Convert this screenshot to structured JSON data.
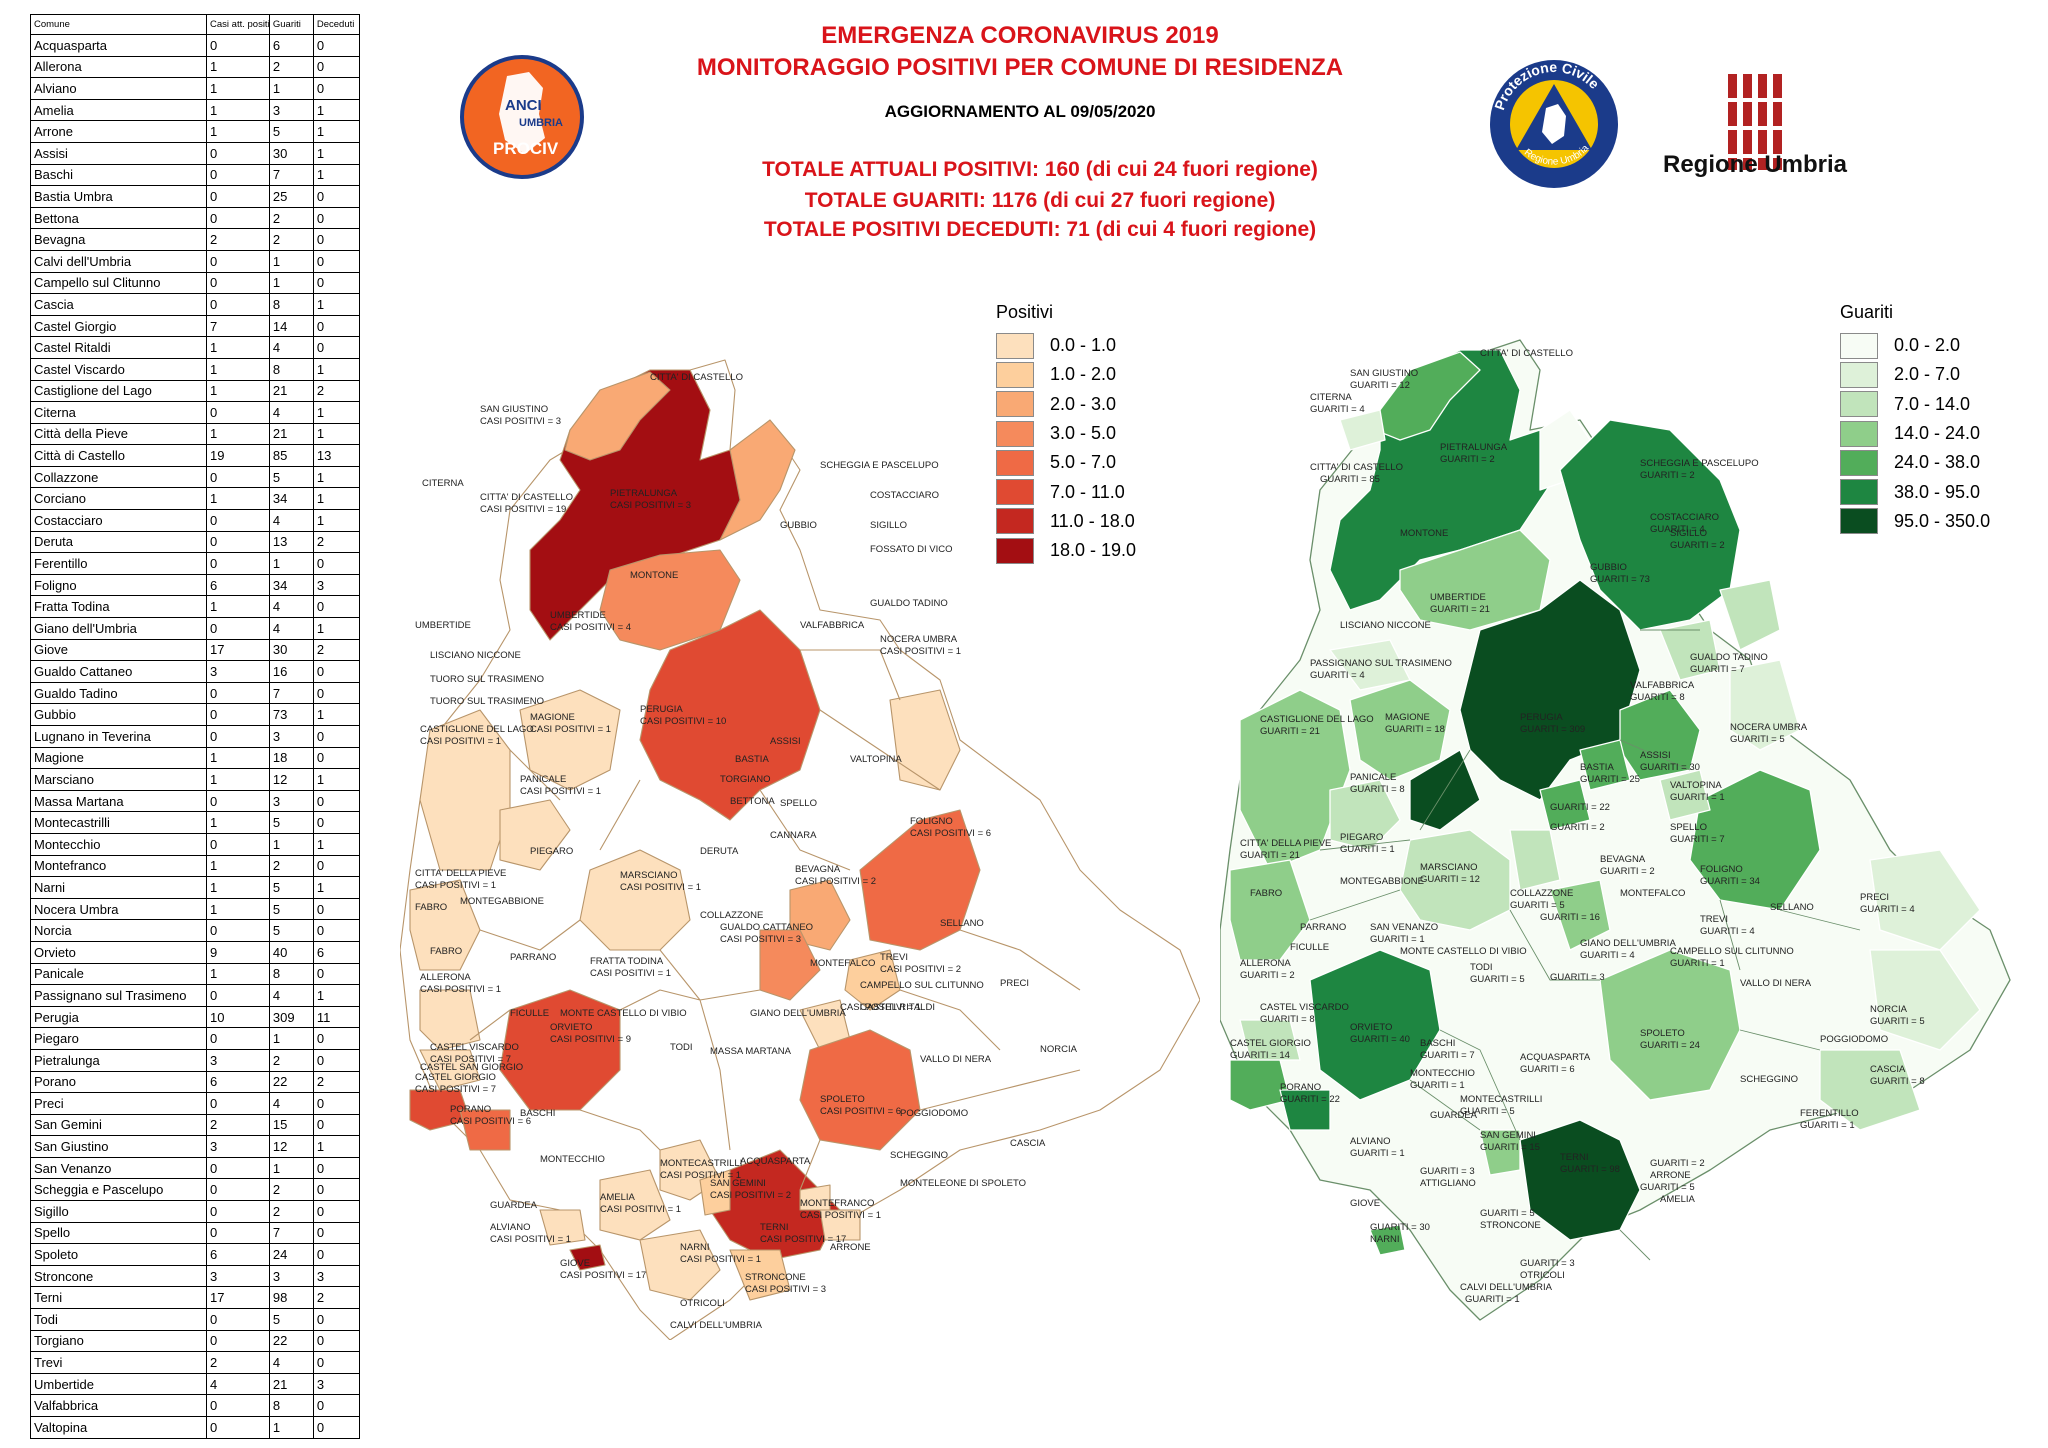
{
  "header": {
    "title_line1": "EMERGENZA CORONAVIRUS 2019",
    "title_line2": "MONITORAGGIO POSITIVI PER COMUNE DI RESIDENZA",
    "update": "AGGIORNAMENTO AL 09/05/2020",
    "totals": [
      "TOTALE ATTUALI POSITIVI: 160 (di cui 24 fuori regione)",
      "TOTALE GUARITI: 1176 (di cui 27 fuori regione)",
      "TOTALE POSITIVI DECEDUTI: 71 (di cui 4 fuori regione)"
    ]
  },
  "logos": {
    "anci": {
      "line1": "ANCI",
      "line2": "UMBRIA",
      "line3": "PROCIV"
    },
    "protezione_civile": {
      "top": "Protezione Civile",
      "bottom": "Regione Umbria"
    },
    "regione": {
      "label": "Regione Umbria"
    }
  },
  "table": {
    "headers": [
      "Comune",
      "Casi att. positivi",
      "Guariti",
      "Deceduti"
    ],
    "rows": [
      [
        "Acquasparta",
        "0",
        "6",
        "0"
      ],
      [
        "Allerona",
        "1",
        "2",
        "0"
      ],
      [
        "Alviano",
        "1",
        "1",
        "0"
      ],
      [
        "Amelia",
        "1",
        "3",
        "1"
      ],
      [
        "Arrone",
        "1",
        "5",
        "1"
      ],
      [
        "Assisi",
        "0",
        "30",
        "1"
      ],
      [
        "Baschi",
        "0",
        "7",
        "1"
      ],
      [
        "Bastia Umbra",
        "0",
        "25",
        "0"
      ],
      [
        "Bettona",
        "0",
        "2",
        "0"
      ],
      [
        "Bevagna",
        "2",
        "2",
        "0"
      ],
      [
        "Calvi dell'Umbria",
        "0",
        "1",
        "0"
      ],
      [
        "Campello sul Clitunno",
        "0",
        "1",
        "0"
      ],
      [
        "Cascia",
        "0",
        "8",
        "1"
      ],
      [
        "Castel Giorgio",
        "7",
        "14",
        "0"
      ],
      [
        "Castel Ritaldi",
        "1",
        "4",
        "0"
      ],
      [
        "Castel Viscardo",
        "1",
        "8",
        "1"
      ],
      [
        "Castiglione del Lago",
        "1",
        "21",
        "2"
      ],
      [
        "Citerna",
        "0",
        "4",
        "1"
      ],
      [
        "Città  della Pieve",
        "1",
        "21",
        "1"
      ],
      [
        "Città  di Castello",
        "19",
        "85",
        "13"
      ],
      [
        "Collazzone",
        "0",
        "5",
        "1"
      ],
      [
        "Corciano",
        "1",
        "34",
        "1"
      ],
      [
        "Costacciaro",
        "0",
        "4",
        "1"
      ],
      [
        "Deruta",
        "0",
        "13",
        "2"
      ],
      [
        "Ferentillo",
        "0",
        "1",
        "0"
      ],
      [
        "Foligno",
        "6",
        "34",
        "3"
      ],
      [
        "Fratta Todina",
        "1",
        "4",
        "0"
      ],
      [
        "Giano dell'Umbria",
        "0",
        "4",
        "1"
      ],
      [
        "Giove",
        "17",
        "30",
        "2"
      ],
      [
        "Gualdo Cattaneo",
        "3",
        "16",
        "0"
      ],
      [
        "Gualdo Tadino",
        "0",
        "7",
        "0"
      ],
      [
        "Gubbio",
        "0",
        "73",
        "1"
      ],
      [
        "Lugnano in Teverina",
        "0",
        "3",
        "0"
      ],
      [
        "Magione",
        "1",
        "18",
        "0"
      ],
      [
        "Marsciano",
        "1",
        "12",
        "1"
      ],
      [
        "Massa Martana",
        "0",
        "3",
        "0"
      ],
      [
        "Montecastrilli",
        "1",
        "5",
        "0"
      ],
      [
        "Montecchio",
        "0",
        "1",
        "1"
      ],
      [
        "Montefranco",
        "1",
        "2",
        "0"
      ],
      [
        "Narni",
        "1",
        "5",
        "1"
      ],
      [
        "Nocera Umbra",
        "1",
        "5",
        "0"
      ],
      [
        "Norcia",
        "0",
        "5",
        "0"
      ],
      [
        "Orvieto",
        "9",
        "40",
        "6"
      ],
      [
        "Panicale",
        "1",
        "8",
        "0"
      ],
      [
        "Passignano sul Trasimeno",
        "0",
        "4",
        "1"
      ],
      [
        "Perugia",
        "10",
        "309",
        "11"
      ],
      [
        "Piegaro",
        "0",
        "1",
        "0"
      ],
      [
        "Pietralunga",
        "3",
        "2",
        "0"
      ],
      [
        "Porano",
        "6",
        "22",
        "2"
      ],
      [
        "Preci",
        "0",
        "4",
        "0"
      ],
      [
        "San Gemini",
        "2",
        "15",
        "0"
      ],
      [
        "San Giustino",
        "3",
        "12",
        "1"
      ],
      [
        "San Venanzo",
        "0",
        "1",
        "0"
      ],
      [
        "Scheggia e Pascelupo",
        "0",
        "2",
        "0"
      ],
      [
        "Sigillo",
        "0",
        "2",
        "0"
      ],
      [
        "Spello",
        "0",
        "7",
        "0"
      ],
      [
        "Spoleto",
        "6",
        "24",
        "0"
      ],
      [
        "Stroncone",
        "3",
        "3",
        "3"
      ],
      [
        "Terni",
        "17",
        "98",
        "2"
      ],
      [
        "Todi",
        "0",
        "5",
        "0"
      ],
      [
        "Torgiano",
        "0",
        "22",
        "0"
      ],
      [
        "Trevi",
        "2",
        "4",
        "0"
      ],
      [
        "Umbertide",
        "4",
        "21",
        "3"
      ],
      [
        "Valfabbrica",
        "0",
        "8",
        "0"
      ],
      [
        "Valtopina",
        "0",
        "1",
        "0"
      ]
    ]
  },
  "legend_positivi": {
    "title": "Positivi",
    "items": [
      {
        "label": "0.0 - 1.0",
        "color": "#fde0bd"
      },
      {
        "label": "1.0 - 2.0",
        "color": "#fdcf9d"
      },
      {
        "label": "2.0 - 3.0",
        "color": "#f9a974"
      },
      {
        "label": "3.0 - 5.0",
        "color": "#f58a5c"
      },
      {
        "label": "5.0 - 7.0",
        "color": "#ef6a45"
      },
      {
        "label": "7.0 - 11.0",
        "color": "#e04a32"
      },
      {
        "label": "11.0 - 18.0",
        "color": "#c42820"
      },
      {
        "label": "18.0 - 19.0",
        "color": "#a30e12"
      }
    ]
  },
  "legend_guariti": {
    "title": "Guariti",
    "items": [
      {
        "label": "0.0 - 2.0",
        "color": "#f7fcf5"
      },
      {
        "label": "2.0 - 7.0",
        "color": "#def1d9"
      },
      {
        "label": "7.0 - 14.0",
        "color": "#c1e4bb"
      },
      {
        "label": "14.0 - 24.0",
        "color": "#8fce8a"
      },
      {
        "label": "24.0 - 38.0",
        "color": "#52ad5a"
      },
      {
        "label": "38.0 - 95.0",
        "color": "#1e8641"
      },
      {
        "label": "95.0 - 350.0",
        "color": "#0a4d20"
      }
    ]
  },
  "map_positivi_labels": [
    "CITTA' DI CASTELLO",
    "SAN GIUSTINO",
    "CASI POSITIVI = 3",
    "CITERNA",
    "CITTA' DI CASTELLO",
    "CASI POSITIVI = 19",
    "PIETRALUNGA",
    "CASI POSITIVI = 3",
    "MONTONE",
    "UMBERTIDE",
    "CASI POSITIVI = 4",
    "UMBERTIDE",
    "LISCIANO NICCONE",
    "TUORO SUL TRASIMENO",
    "TUORO SUL TRASIMENO",
    "SCHEGGIA E PASCELUPO",
    "COSTACCIARO",
    "GUBBIO",
    "SIGILLO",
    "FOSSATO DI VICO",
    "GUALDO TADINO",
    "VALFABBRICA",
    "NOCERA UMBRA",
    "CASI POSITIVI = 1",
    "PERUGIA",
    "CASI POSITIVI = 10",
    "CASTIGLIONE DEL LAGO",
    "CASI POSITIVI = 1",
    "MAGIONE",
    "CASI POSITIVI = 1",
    "PANICALE",
    "CASI POSITIVI = 1",
    "BASTIA",
    "ASSISI",
    "VALTOPINA",
    "TORGIANO",
    "BETTONA",
    "SPELLO",
    "FOLIGNO",
    "CASI POSITIVI = 6",
    "CITTA' DELLA PIEVE",
    "CASI POSITIVI = 1",
    "PIEGARO",
    "DERUTA",
    "MARSCIANO",
    "CASI POSITIVI = 1",
    "CANNARA",
    "BEVAGNA",
    "CASI POSITIVI = 2",
    "FABRO",
    "MONTEGABBIONE",
    "COLLAZZONE",
    "GUALDO CATTANEO",
    "CASI POSITIVI = 3",
    "MONTEFALCO",
    "SELLANO",
    "TREVI",
    "CASI POSITIVI = 2",
    "FABRO",
    "PARRANO",
    "FRATTA TODINA",
    "CASI POSITIVI = 1",
    "ALLERONA",
    "CASI POSITIVI = 1",
    "FICULLE",
    "MONTE CASTELLO DI VIBIO",
    "GIANO DELL'UMBRIA",
    "CAMPELLO SUL CLITUNNO",
    "CASTEL RITALDI",
    "CASI POSITIVI = 1",
    "PRECI",
    "CASTEL SAN GIORGIO",
    "CASTEL VISCARDO",
    "CASI POSITIVI = 7",
    "TODI",
    "MASSA MARTANA",
    "VALLO DI NERA",
    "NORCIA",
    "ORVIETO",
    "CASI POSITIVI = 9",
    "CASTEL GIORGIO",
    "CASI POSITIVI = 7",
    "PORANO",
    "CASI POSITIVI = 6",
    "SPOLETO",
    "CASI POSITIVI = 6",
    "POGGIODOMO",
    "BASCHI",
    "ACQUASPARTA",
    "CASCIA",
    "SCHEGGINO",
    "MONTECCHIO",
    "MONTELEONE DI SPOLETO",
    "GUARDEA",
    "MONTECASTRILLI",
    "CASI POSITIVI = 1",
    "SAN GEMINI",
    "CASI POSITIVI = 2",
    "ALVIANO",
    "CASI POSITIVI = 1",
    "MONTEFRANCO",
    "CASI POSITIVI = 1",
    "AMELIA",
    "CASI POSITIVI = 1",
    "TERNI",
    "CASI POSITIVI = 17",
    "ARRONE",
    "GIOVE",
    "CASI POSITIVI = 17",
    "NARNI",
    "CASI POSITIVI = 1",
    "STRONCONE",
    "CASI POSITIVI = 3",
    "OTRICOLI",
    "CALVI DELL'UMBRIA"
  ],
  "map_guariti_labels": [
    "CITTA' DI CASTELLO",
    "SAN GIUSTINO",
    "GUARITI = 12",
    "CITERNA",
    "GUARITI = 4",
    "CITTA' DI CASTELLO",
    "GUARITI = 85",
    "PIETRALUNGA",
    "GUARITI = 2",
    "MONTONE",
    "SCHEGGIA E PASCELUPO",
    "GUARITI = 2",
    "COSTACCIARO",
    "GUARITI = 4",
    "SIGILLO",
    "GUARITI = 2",
    "UMBERTIDE",
    "GUARITI = 21",
    "GUBBIO",
    "GUARITI = 73",
    "LISCIANO NICCONE",
    "GUALDO TADINO",
    "GUARITI = 7",
    "PASSIGNANO SUL TRASIMENO",
    "GUARITI = 4",
    "VALFABBRICA",
    "GUARITI = 8",
    "CASTIGLIONE DEL LAGO",
    "GUARITI = 21",
    "MAGIONE",
    "GUARITI = 18",
    "PERUGIA",
    "GUARITI = 309",
    "NOCERA UMBRA",
    "GUARITI = 5",
    "ASSISI",
    "GUARITI = 30",
    "PANICALE",
    "GUARITI = 8",
    "BASTIA",
    "GUARITI = 25",
    "VALTOPINA",
    "GUARITI = 1",
    "GUARITI = 22",
    "GUARITI = 2",
    "SPELLO",
    "GUARITI = 7",
    "CITTA' DELLA PIEVE",
    "GUARITI = 21",
    "PIEGARO",
    "GUARITI = 1",
    "MARSCIANO",
    "GUARITI = 12",
    "FOLIGNO",
    "GUARITI = 34",
    "BEVAGNA",
    "GUARITI = 2",
    "MONTEGABBIONE",
    "FABRO",
    "COLLAZZONE",
    "GUARITI = 5",
    "GUARITI = 16",
    "MONTEFALCO",
    "SELLANO",
    "PARRANO",
    "SAN VENANZO",
    "GUARITI = 1",
    "TREVI",
    "GUARITI = 4",
    "PRECI",
    "GUARITI = 4",
    "FICULLE",
    "MONTE CASTELLO DI VIBIO",
    "GIANO DELL'UMBRIA",
    "GUARITI = 4",
    "CAMPELLO SUL CLITUNNO",
    "GUARITI = 1",
    "ALLERONA",
    "GUARITI = 2",
    "TODI",
    "GUARITI = 5",
    "GUARITI = 3",
    "VALLO DI NERA",
    "NORCIA",
    "GUARITI = 5",
    "CASTEL VISCARDO",
    "GUARITI = 8",
    "ORVIETO",
    "GUARITI = 40",
    "CASTEL GIORGIO",
    "GUARITI = 14",
    "SPOLETO",
    "GUARITI = 24",
    "POGGIODOMO",
    "PORANO",
    "GUARITI = 22",
    "BASCHI",
    "GUARITI = 7",
    "ACQUASPARTA",
    "GUARITI = 6",
    "CASCIA",
    "GUARITI = 8",
    "MONTECCHIO",
    "GUARITI = 1",
    "SCHEGGINO",
    "MONTECASTRILLI",
    "GUARITI = 5",
    "GUARDEA",
    "FERENTILLO",
    "GUARITI = 1",
    "SAN GEMINI",
    "GUARITI = 15",
    "ALVIANO",
    "GUARITI = 1",
    "TERNI",
    "GUARITI = 98",
    "GUARITI = 2",
    "ARRONE",
    "GUARITI = 5",
    "AMELIA",
    "GUARITI = 3",
    "ATTIGLIANO",
    "GIOVE",
    "GUARITI = 30",
    "NARNI",
    "GUARITI = 5",
    "STRONCONE",
    "GUARITI = 3",
    "OTRICOLI",
    "CALVI DELL'UMBRIA",
    "GUARITI = 1"
  ]
}
